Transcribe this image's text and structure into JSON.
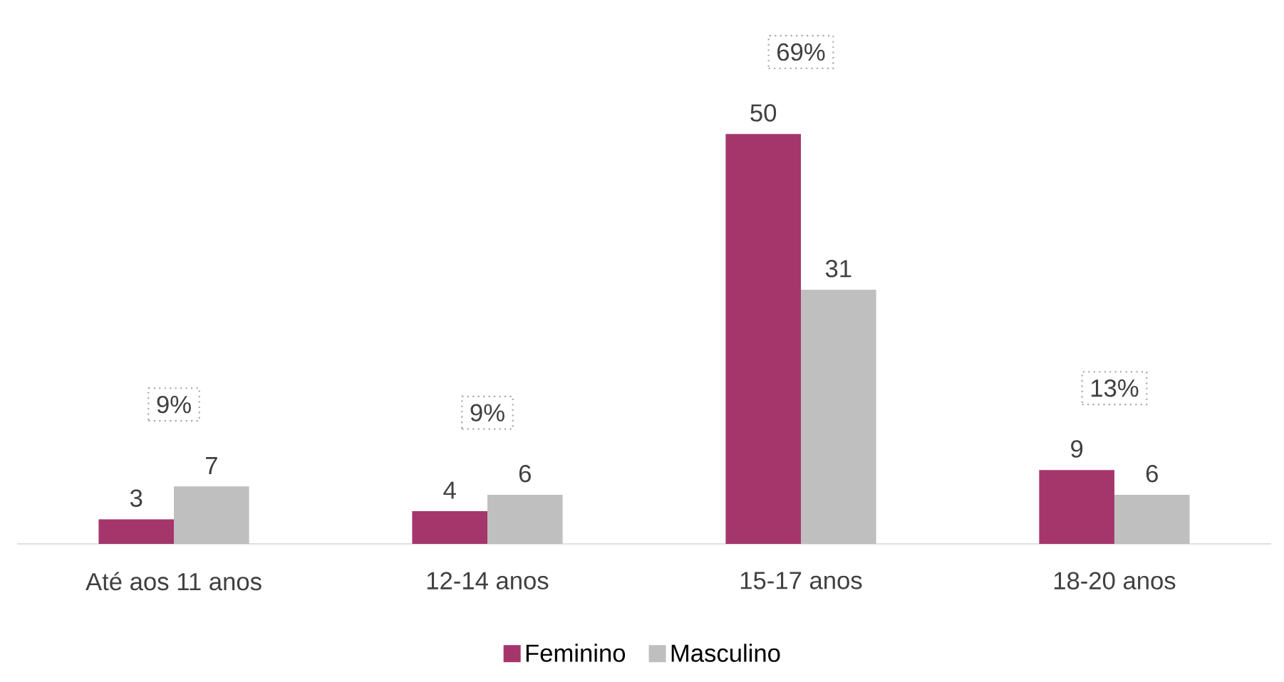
{
  "chart_data": {
    "type": "bar",
    "categories": [
      "Até aos 11 anos",
      "12-14 anos",
      "15-17 anos",
      "18-20 anos"
    ],
    "series": [
      {
        "name": "Feminino",
        "color": "#a5366b",
        "values": [
          3,
          4,
          50,
          9
        ]
      },
      {
        "name": "Masculino",
        "color": "#bfbfbf",
        "values": [
          7,
          6,
          31,
          6
        ]
      }
    ],
    "data_labels": true,
    "legend": "bottom",
    "annotations": [
      "9%",
      "9%",
      "69%",
      "13%"
    ]
  }
}
